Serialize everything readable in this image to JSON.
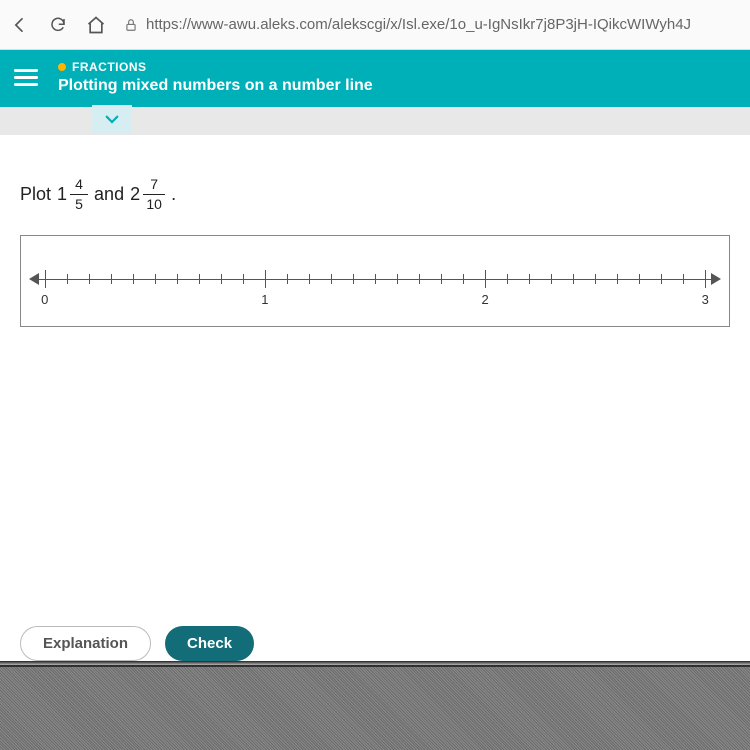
{
  "browser": {
    "url": "https://www-awu.aleks.com/alekscgi/x/Isl.exe/1o_u-IgNsIkr7j8P3jH-IQikcWIWyh4J"
  },
  "header": {
    "category": "FRACTIONS",
    "title": "Plotting mixed numbers on a number line"
  },
  "prompt": {
    "lead": "Plot",
    "first": {
      "whole": "1",
      "num": "4",
      "den": "5"
    },
    "conj": "and",
    "second": {
      "whole": "2",
      "num": "7",
      "den": "10"
    },
    "tail": "."
  },
  "numberline": {
    "min": 0,
    "max": 3,
    "majorEvery": 1,
    "minorPerMajor": 10,
    "labels": [
      "0",
      "1",
      "2",
      "3"
    ],
    "axisColor": "#555",
    "labelColor": "#333"
  },
  "buttons": {
    "explain": "Explanation",
    "check": "Check"
  },
  "colors": {
    "teal": "#00b0b9",
    "tealDark": "#126d78",
    "accent": "#ffb400",
    "pageBg": "#ffffff",
    "chromeBg": "#fafafa"
  }
}
